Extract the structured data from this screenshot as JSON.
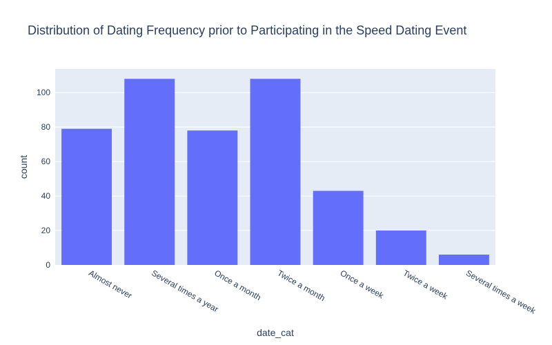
{
  "chart_data": {
    "type": "bar",
    "title": "Distribution of Dating Frequency prior to Participating in the Speed Dating Event",
    "xlabel": "date_cat",
    "ylabel": "count",
    "categories": [
      "Almost never",
      "Several times a year",
      "Once a month",
      "Twice a month",
      "Once a week",
      "Twice a week",
      "Several times a week"
    ],
    "values": [
      79,
      108,
      78,
      108,
      43,
      20,
      6
    ],
    "ylim": [
      0,
      113.7
    ],
    "yticks": [
      0,
      20,
      40,
      60,
      80,
      100
    ],
    "grid": true,
    "legend": "none"
  },
  "colors": {
    "bar": "#636efa",
    "plot_bg": "#e5ecf6",
    "grid": "#ffffff",
    "text": "#2a3f5f"
  }
}
